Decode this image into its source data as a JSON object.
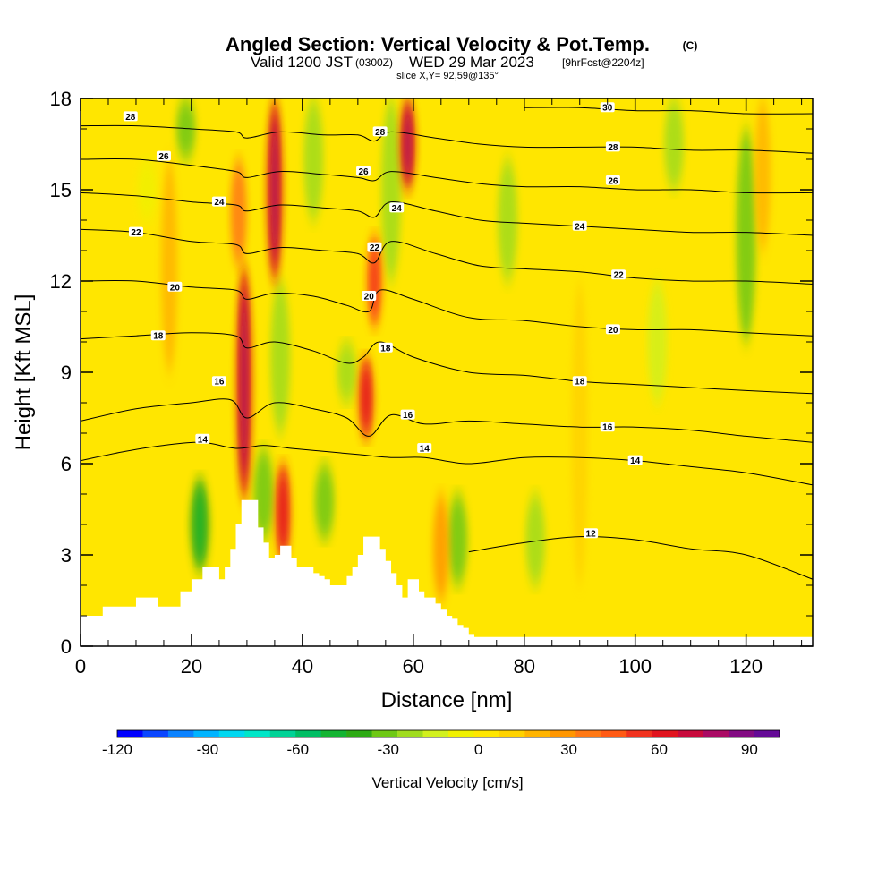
{
  "header": {
    "title": "Angled Section: Vertical Velocity & Pot.Temp.",
    "title_tag": "(C)",
    "valid_prefix": "Valid 1200 JST",
    "valid_utc": "(0300Z)",
    "valid_date": "WED 29 Mar 2023",
    "forecast": "[9hrFcst@2204z]",
    "slice": "slice X,Y= 92,59@135°"
  },
  "chart_data": {
    "type": "heatmap",
    "xlabel": "Distance [nm]",
    "ylabel": "Height [Kft MSL]",
    "xlim": [
      0,
      132
    ],
    "ylim": [
      0,
      18
    ],
    "x_ticks": [
      0,
      20,
      40,
      60,
      80,
      100,
      120
    ],
    "y_ticks": [
      0,
      3,
      6,
      9,
      12,
      15,
      18
    ],
    "shaded_field": "vertical velocity (cm/s)",
    "contour_field": "potential temperature (C)",
    "background_value": 5,
    "updraft_columns": [
      {
        "x": 29.5,
        "ymin": 4.8,
        "ymax": 12.5,
        "value": 65
      },
      {
        "x": 35,
        "ymin": 12,
        "ymax": 18,
        "value": 65
      },
      {
        "x": 36.5,
        "ymin": 2.8,
        "ymax": 6,
        "value": 50
      },
      {
        "x": 51.5,
        "ymin": 6.8,
        "ymax": 9.5,
        "value": 55
      },
      {
        "x": 53,
        "ymin": 10.5,
        "ymax": 13.5,
        "value": 45
      },
      {
        "x": 59,
        "ymin": 15,
        "ymax": 18,
        "value": 65
      },
      {
        "x": 28.5,
        "ymin": 12.5,
        "ymax": 16,
        "value": 35
      },
      {
        "x": 16,
        "ymin": 9,
        "ymax": 16,
        "value": 20
      },
      {
        "x": 90,
        "ymin": 2,
        "ymax": 12,
        "value": 15
      },
      {
        "x": 123,
        "ymin": 13,
        "ymax": 18,
        "value": 20
      },
      {
        "x": 65,
        "ymin": 1.5,
        "ymax": 5,
        "value": 25
      }
    ],
    "downdraft_columns": [
      {
        "x": 21.5,
        "ymin": 2.5,
        "ymax": 5.5,
        "value": -40
      },
      {
        "x": 33,
        "ymin": 3.5,
        "ymax": 6.5,
        "value": -35
      },
      {
        "x": 36,
        "ymin": 7,
        "ymax": 12,
        "value": -20
      },
      {
        "x": 44,
        "ymin": 3.5,
        "ymax": 6,
        "value": -30
      },
      {
        "x": 42,
        "ymin": 14,
        "ymax": 18,
        "value": -25
      },
      {
        "x": 48,
        "ymin": 8,
        "ymax": 10,
        "value": -20
      },
      {
        "x": 56,
        "ymin": 12,
        "ymax": 18,
        "value": -20
      },
      {
        "x": 68,
        "ymin": 2,
        "ymax": 5,
        "value": -30
      },
      {
        "x": 77,
        "ymin": 12,
        "ymax": 16,
        "value": -20
      },
      {
        "x": 82,
        "ymin": 2,
        "ymax": 5,
        "value": -20
      },
      {
        "x": 120,
        "ymin": 10,
        "ymax": 17,
        "value": -35
      },
      {
        "x": 104,
        "ymin": 8,
        "ymax": 12,
        "value": -15
      },
      {
        "x": 107,
        "ymin": 15,
        "ymax": 18,
        "value": -20
      },
      {
        "x": 19,
        "ymin": 16,
        "ymax": 18,
        "value": -30
      },
      {
        "x": 12,
        "ymin": 14,
        "ymax": 16,
        "value": -10
      }
    ],
    "terrain": {
      "x": [
        0,
        4,
        10,
        12,
        14,
        16,
        18,
        20,
        22,
        23,
        25,
        26,
        27,
        28,
        29,
        30,
        31,
        32,
        33,
        34,
        35,
        36,
        37,
        38,
        39,
        40,
        41,
        42,
        43,
        44,
        45,
        46,
        48,
        49,
        50,
        51,
        52,
        53,
        54,
        55,
        56,
        57,
        58,
        59,
        60,
        61,
        62,
        63,
        64,
        65,
        66,
        67,
        68,
        69,
        70,
        71,
        72,
        132
      ],
      "y": [
        1.0,
        1.3,
        1.6,
        1.6,
        1.3,
        1.3,
        1.8,
        2.2,
        2.6,
        2.6,
        2.2,
        2.6,
        3.2,
        4.0,
        4.8,
        4.8,
        4.8,
        3.9,
        3.4,
        2.9,
        3.0,
        3.3,
        3.3,
        2.9,
        2.6,
        2.6,
        2.6,
        2.4,
        2.3,
        2.2,
        2.0,
        2.0,
        2.3,
        2.6,
        3.0,
        3.6,
        3.6,
        3.6,
        3.2,
        2.8,
        2.4,
        2.0,
        1.6,
        2.2,
        2.2,
        1.8,
        1.6,
        1.6,
        1.4,
        1.2,
        1.0,
        0.9,
        0.7,
        0.6,
        0.4,
        0.3,
        0.3,
        0.3
      ]
    },
    "contours": [
      {
        "value": 12,
        "label": "12",
        "x": [
          70,
          80,
          90,
          100,
          110,
          120,
          132
        ],
        "y": [
          3.1,
          3.4,
          3.6,
          3.5,
          3.2,
          3.0,
          2.2
        ],
        "label_at": [
          [
            92,
            3.7
          ]
        ]
      },
      {
        "value": 14,
        "label": "14",
        "x": [
          0,
          8,
          15,
          22,
          28,
          33,
          38,
          44,
          50,
          56,
          62,
          70,
          80,
          90,
          100,
          110,
          120,
          132
        ],
        "y": [
          6.1,
          6.4,
          6.6,
          6.7,
          6.5,
          6.6,
          6.5,
          6.4,
          6.3,
          6.2,
          6.2,
          6.0,
          6.2,
          6.2,
          6.1,
          5.9,
          5.7,
          5.3
        ],
        "label_at": [
          [
            22,
            6.8
          ],
          [
            62,
            6.5
          ],
          [
            100,
            6.1
          ]
        ]
      },
      {
        "value": 16,
        "label": "16",
        "x": [
          0,
          10,
          20,
          27,
          30,
          35,
          42,
          48,
          52,
          56,
          62,
          70,
          80,
          90,
          100,
          110,
          120,
          132
        ],
        "y": [
          7.4,
          7.8,
          8.0,
          8.1,
          7.5,
          8.0,
          7.8,
          7.5,
          6.9,
          7.6,
          7.3,
          7.4,
          7.3,
          7.2,
          7.2,
          7.1,
          6.9,
          6.7
        ],
        "label_at": [
          [
            25,
            8.7
          ],
          [
            59,
            7.6
          ],
          [
            95,
            7.2
          ]
        ]
      },
      {
        "value": 18,
        "label": "18",
        "x": [
          0,
          10,
          20,
          28,
          30,
          35,
          42,
          48,
          51,
          54,
          60,
          70,
          80,
          90,
          100,
          110,
          120,
          132
        ],
        "y": [
          10.1,
          10.2,
          10.3,
          10.2,
          9.8,
          10.0,
          9.7,
          9.3,
          9.5,
          10.0,
          9.5,
          9.0,
          8.9,
          8.7,
          8.6,
          8.5,
          8.4,
          8.3
        ],
        "label_at": [
          [
            14,
            10.2
          ],
          [
            55,
            9.8
          ],
          [
            90,
            8.7
          ]
        ]
      },
      {
        "value": 20,
        "label": "20",
        "x": [
          0,
          10,
          20,
          28,
          30,
          35,
          42,
          48,
          52,
          54,
          60,
          70,
          80,
          90,
          100,
          110,
          120,
          132
        ],
        "y": [
          12.0,
          12.0,
          11.8,
          11.7,
          11.4,
          11.6,
          11.5,
          11.2,
          11.0,
          11.7,
          11.4,
          10.8,
          10.7,
          10.5,
          10.4,
          10.4,
          10.3,
          10.2
        ],
        "label_at": [
          [
            17,
            11.8
          ],
          [
            52,
            11.5
          ],
          [
            96,
            10.4
          ]
        ]
      },
      {
        "value": 22,
        "label": "22",
        "x": [
          0,
          10,
          20,
          28,
          30,
          36,
          44,
          50,
          53,
          56,
          64,
          72,
          80,
          90,
          100,
          110,
          120,
          132
        ],
        "y": [
          13.7,
          13.6,
          13.3,
          13.2,
          12.9,
          13.1,
          13.0,
          12.9,
          12.6,
          13.3,
          12.9,
          12.5,
          12.4,
          12.3,
          12.1,
          12.0,
          12.0,
          11.9
        ],
        "label_at": [
          [
            10,
            13.6
          ],
          [
            53,
            13.1
          ],
          [
            97,
            12.2
          ]
        ]
      },
      {
        "value": 24,
        "label": "24",
        "x": [
          0,
          10,
          20,
          28,
          30,
          36,
          44,
          50,
          53,
          56,
          64,
          72,
          80,
          90,
          100,
          110,
          120,
          132
        ],
        "y": [
          14.9,
          14.8,
          14.6,
          14.5,
          14.3,
          14.5,
          14.4,
          14.3,
          14.1,
          14.6,
          14.3,
          14.0,
          13.9,
          13.8,
          13.7,
          13.6,
          13.6,
          13.5
        ],
        "label_at": [
          [
            25,
            14.6
          ],
          [
            57,
            14.4
          ],
          [
            90,
            13.8
          ]
        ]
      },
      {
        "value": 26,
        "label": "26",
        "x": [
          0,
          10,
          20,
          28,
          30,
          36,
          44,
          50,
          53,
          56,
          64,
          72,
          80,
          90,
          100,
          110,
          120,
          132
        ],
        "y": [
          16.0,
          16.0,
          15.8,
          15.6,
          15.4,
          15.6,
          15.5,
          15.4,
          15.3,
          15.6,
          15.4,
          15.2,
          15.1,
          15.1,
          15.0,
          15.0,
          14.9,
          14.9
        ],
        "label_at": [
          [
            15,
            16.1
          ],
          [
            51,
            15.6
          ],
          [
            96,
            15.3
          ]
        ]
      },
      {
        "value": 28,
        "label": "28",
        "x": [
          0,
          10,
          20,
          28,
          30,
          36,
          44,
          50,
          53,
          56,
          64,
          72,
          80,
          90,
          100,
          110,
          120,
          132
        ],
        "y": [
          17.1,
          17.1,
          17.0,
          16.9,
          16.7,
          16.9,
          16.8,
          16.8,
          16.6,
          16.9,
          16.7,
          16.5,
          16.4,
          16.4,
          16.4,
          16.3,
          16.3,
          16.2
        ],
        "label_at": [
          [
            9,
            17.4
          ],
          [
            54,
            16.9
          ],
          [
            96,
            16.4
          ]
        ]
      },
      {
        "value": 30,
        "label": "30",
        "x": [
          80,
          90,
          100,
          110,
          120,
          132
        ],
        "y": [
          17.7,
          17.7,
          17.6,
          17.6,
          17.5,
          17.5
        ],
        "label_at": [
          [
            95,
            17.7
          ]
        ]
      }
    ],
    "colorbar": {
      "label": "Vertical Velocity [cm/s]",
      "min": -120,
      "max": 100,
      "ticks": [
        -120,
        -90,
        -60,
        -30,
        0,
        30,
        60,
        90
      ],
      "tick_labels": [
        "-120",
        "-90",
        "-60",
        "-30",
        "0",
        "30",
        "60",
        "90"
      ],
      "colors": [
        "#0000ff",
        "#0a46ff",
        "#0a82ff",
        "#00b4ff",
        "#00d8f0",
        "#00e6c8",
        "#00d296",
        "#00be64",
        "#14b432",
        "#2daa14",
        "#6ec814",
        "#a0dc1e",
        "#d2f01e",
        "#f0f000",
        "#ffe600",
        "#ffd200",
        "#ffb400",
        "#ff9600",
        "#ff7814",
        "#ff5a14",
        "#f0321e",
        "#e1141e",
        "#c80a3c",
        "#aa0a64",
        "#820a82",
        "#640a96"
      ]
    }
  }
}
